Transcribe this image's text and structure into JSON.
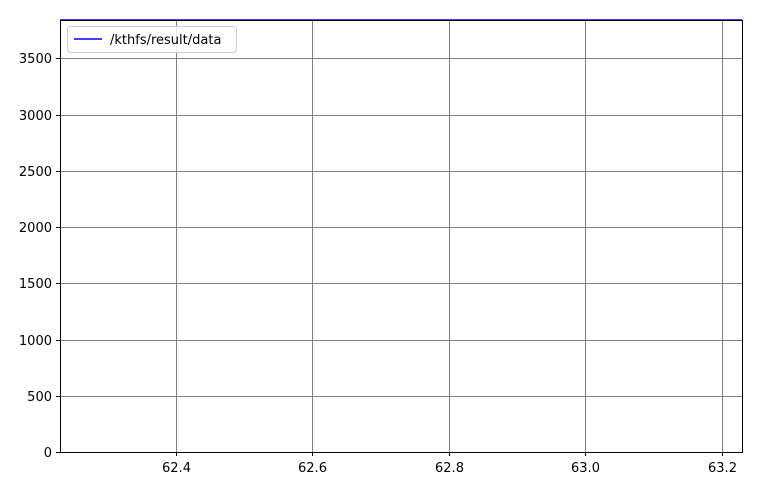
{
  "chart_data": {
    "type": "line",
    "title": "",
    "xlabel": "",
    "ylabel": "",
    "xlim": [
      62.23,
      63.23
    ],
    "ylim": [
      0,
      3840
    ],
    "x_ticks": [
      62.4,
      62.6,
      62.8,
      63.0,
      63.2
    ],
    "x_tick_labels": [
      "62.4",
      "62.6",
      "62.8",
      "63.0",
      "63.2"
    ],
    "y_ticks": [
      0,
      500,
      1000,
      1500,
      2000,
      2500,
      3000,
      3500
    ],
    "y_tick_labels": [
      "0",
      "500",
      "1000",
      "1500",
      "2000",
      "2500",
      "3000",
      "3500"
    ],
    "grid": true,
    "legend_position": "top-left",
    "series": [
      {
        "name": "/kthfs/result/data",
        "color": "#0000ff",
        "x": [
          62.23,
          63.23
        ],
        "y": [
          3840,
          3840
        ]
      }
    ]
  }
}
